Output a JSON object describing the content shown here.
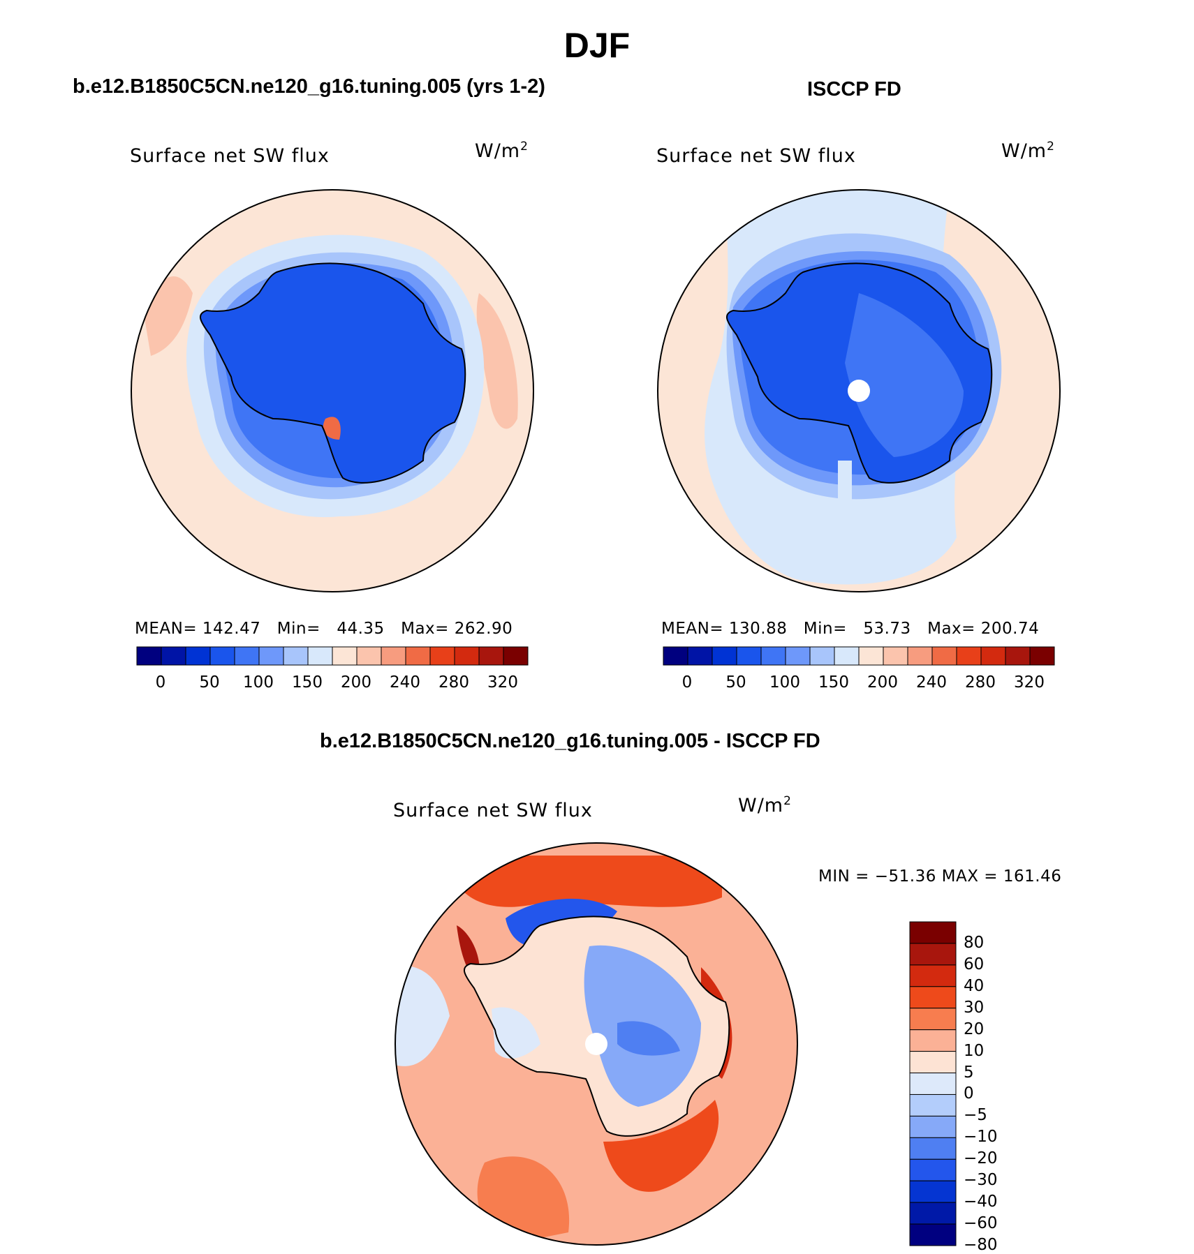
{
  "title": "DJF",
  "panels": [
    {
      "case_title": "b.e12.B1850C5CN.ne120_g16.tuning.005 (yrs 1-2)",
      "variable": "Surface net SW flux",
      "units_base": "W/m",
      "units_exp": "2",
      "stats": "MEAN= 142.47   Min=   44.35   Max= 262.90",
      "colorbar": {
        "colors": [
          "#00007f",
          "#0014a6",
          "#0033d4",
          "#1a55ec",
          "#3f75f5",
          "#6e98fa",
          "#a8c5fb",
          "#d8e8fb",
          "#fce5d6",
          "#fbc4ad",
          "#f79c7f",
          "#f06b45",
          "#e84019",
          "#d32a0f",
          "#a8160d",
          "#7a0000"
        ],
        "tick_labels": [
          "0",
          "50",
          "100",
          "150",
          "200",
          "240",
          "280",
          "320"
        ]
      }
    },
    {
      "case_title": "ISCCP FD",
      "variable": "Surface net SW flux",
      "units_base": "W/m",
      "units_exp": "2",
      "stats": "MEAN= 130.88   Min=   53.73   Max= 200.74",
      "colorbar": {
        "colors": [
          "#00007f",
          "#0014a6",
          "#0033d4",
          "#1a55ec",
          "#3f75f5",
          "#6e98fa",
          "#a8c5fb",
          "#d8e8fb",
          "#fce5d6",
          "#fbc4ad",
          "#f79c7f",
          "#f06b45",
          "#e84019",
          "#d32a0f",
          "#a8160d",
          "#7a0000"
        ],
        "tick_labels": [
          "0",
          "50",
          "100",
          "150",
          "200",
          "240",
          "280",
          "320"
        ]
      }
    },
    {
      "case_title": "b.e12.B1850C5CN.ne120_g16.tuning.005 - ISCCP FD",
      "variable": "Surface net SW flux",
      "units_base": "W/m",
      "units_exp": "2",
      "stats": "MIN = −51.36 MAX = 161.46",
      "colorbar": {
        "colors": [
          "#7a0000",
          "#a8160d",
          "#d32a0f",
          "#ee4a1b",
          "#f77d4f",
          "#fbb196",
          "#fde3d4",
          "#dde9fa",
          "#b3cdfb",
          "#86a9f8",
          "#4f7ff2",
          "#2356ec",
          "#0535d2",
          "#0019a8",
          "#000080"
        ],
        "tick_labels": [
          "80",
          "60",
          "40",
          "30",
          "20",
          "10",
          "5",
          "0",
          "−5",
          "−10",
          "−20",
          "−30",
          "−40",
          "−60",
          "−80"
        ]
      }
    }
  ],
  "chart_data": [
    {
      "type": "heatmap",
      "projection": "south-polar-stereographic",
      "title": "b.e12.B1850C5CN.ne120_g16.tuning.005 (yrs 1-2)",
      "variable": "Surface net SW flux",
      "units": "W/m2",
      "mean": 142.47,
      "min": 44.35,
      "max": 262.9,
      "levels": [
        0,
        25,
        50,
        75,
        100,
        125,
        150,
        175,
        200,
        220,
        240,
        260,
        280,
        300,
        320
      ]
    },
    {
      "type": "heatmap",
      "projection": "south-polar-stereographic",
      "title": "ISCCP FD",
      "variable": "Surface net SW flux",
      "units": "W/m2",
      "mean": 130.88,
      "min": 53.73,
      "max": 200.74,
      "levels": [
        0,
        25,
        50,
        75,
        100,
        125,
        150,
        175,
        200,
        220,
        240,
        260,
        280,
        300,
        320
      ]
    },
    {
      "type": "heatmap",
      "projection": "south-polar-stereographic",
      "title": "b.e12.B1850C5CN.ne120_g16.tuning.005 - ISCCP FD",
      "variable": "Surface net SW flux",
      "units": "W/m2",
      "min": -51.36,
      "max": 161.46,
      "levels": [
        -80,
        -60,
        -40,
        -30,
        -20,
        -10,
        -5,
        0,
        5,
        10,
        20,
        30,
        40,
        60,
        80
      ]
    }
  ]
}
